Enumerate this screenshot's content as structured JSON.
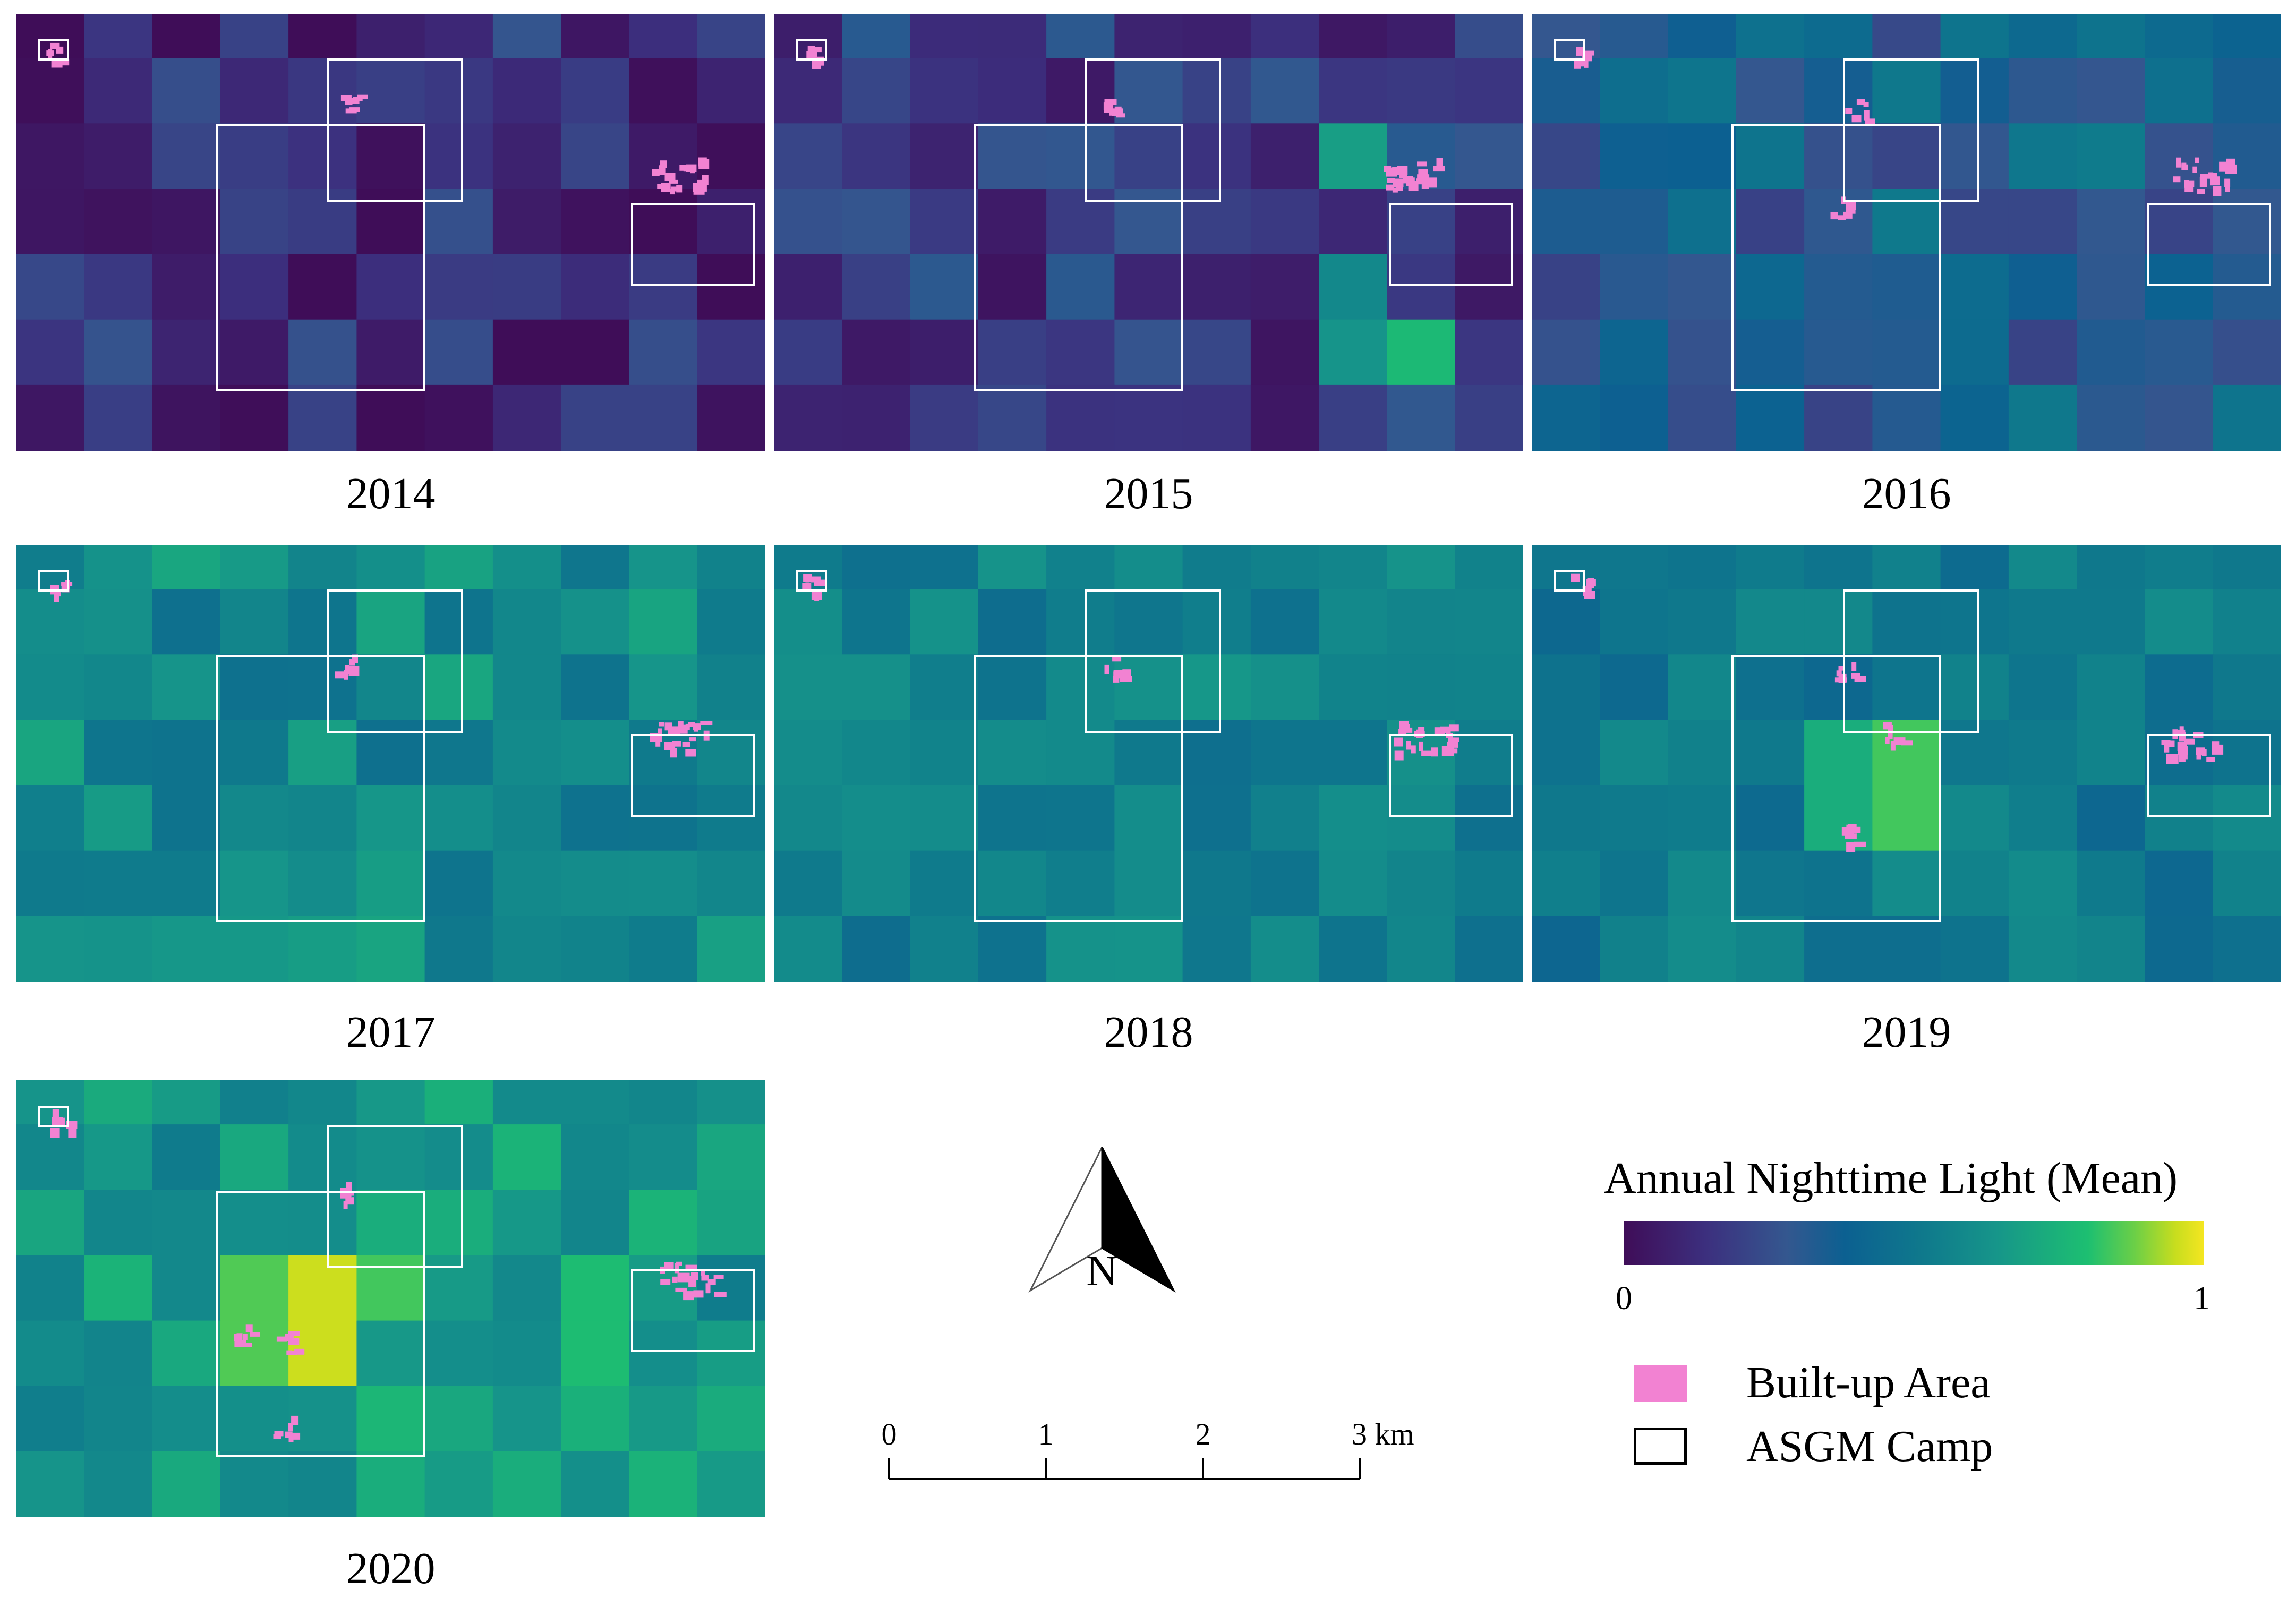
{
  "panels": [
    {
      "year": "2014"
    },
    {
      "year": "2015"
    },
    {
      "year": "2016"
    },
    {
      "year": "2017"
    },
    {
      "year": "2018"
    },
    {
      "year": "2019"
    },
    {
      "year": "2020"
    }
  ],
  "north_arrow": {
    "label": "N",
    "icon": "north-arrow-icon"
  },
  "scale_bar": {
    "ticks": [
      "0",
      "1",
      "2",
      "3 km"
    ]
  },
  "legend": {
    "title": "Annual Nighttime Light (Mean)",
    "min_label": "0",
    "max_label": "1",
    "built_up_label": "Built-up Area",
    "camp_label": "ASGM Camp",
    "built_up_color": "#f282d2",
    "camp_color": "#ffffff"
  }
}
